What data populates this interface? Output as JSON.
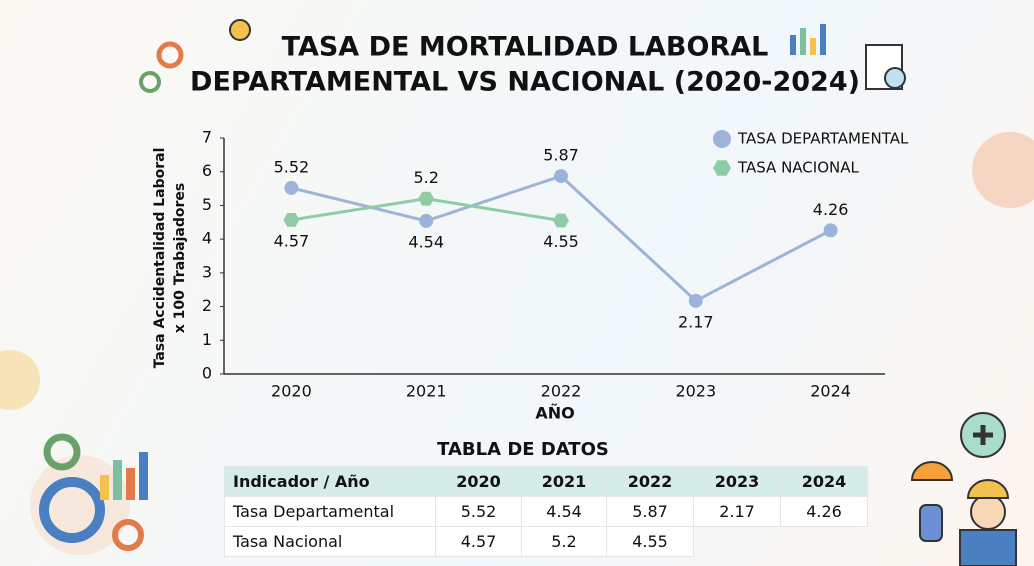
{
  "chart_data": {
    "type": "line",
    "title": [
      "TASA DE MORTALIDAD LABORAL",
      "DEPARTAMENTAL VS NACIONAL (2020-2024)"
    ],
    "ylabel": [
      "Tasa Accidentalidad Laboral",
      "x 100 Trabajadores"
    ],
    "xlabel": "AÑO",
    "categories": [
      "2020",
      "2021",
      "2022",
      "2023",
      "2024"
    ],
    "series": [
      {
        "name": "TASA DEPARTAMENTAL",
        "color": "#9db3d9",
        "marker": "circle",
        "values": [
          5.52,
          4.54,
          5.87,
          2.17,
          4.26
        ]
      },
      {
        "name": "TASA NACIONAL",
        "color": "#8fcca5",
        "marker": "hexagon",
        "values": [
          4.57,
          5.2,
          4.55,
          null,
          null
        ]
      }
    ],
    "ylim": [
      0,
      7
    ],
    "yticks": [
      0,
      1,
      2,
      3,
      4,
      5,
      6,
      7
    ],
    "grid": false,
    "legend": "upper right"
  },
  "table": {
    "title": "TABLA DE DATOS",
    "header": [
      "Indicador / Año",
      "2020",
      "2021",
      "2022",
      "2023",
      "2024"
    ],
    "rows": [
      [
        "Tasa Departamental",
        "5.52",
        "4.54",
        "5.87",
        "2.17",
        "4.26"
      ],
      [
        "Tasa Nacional",
        "4.57",
        "5.2",
        "4.55"
      ]
    ]
  }
}
